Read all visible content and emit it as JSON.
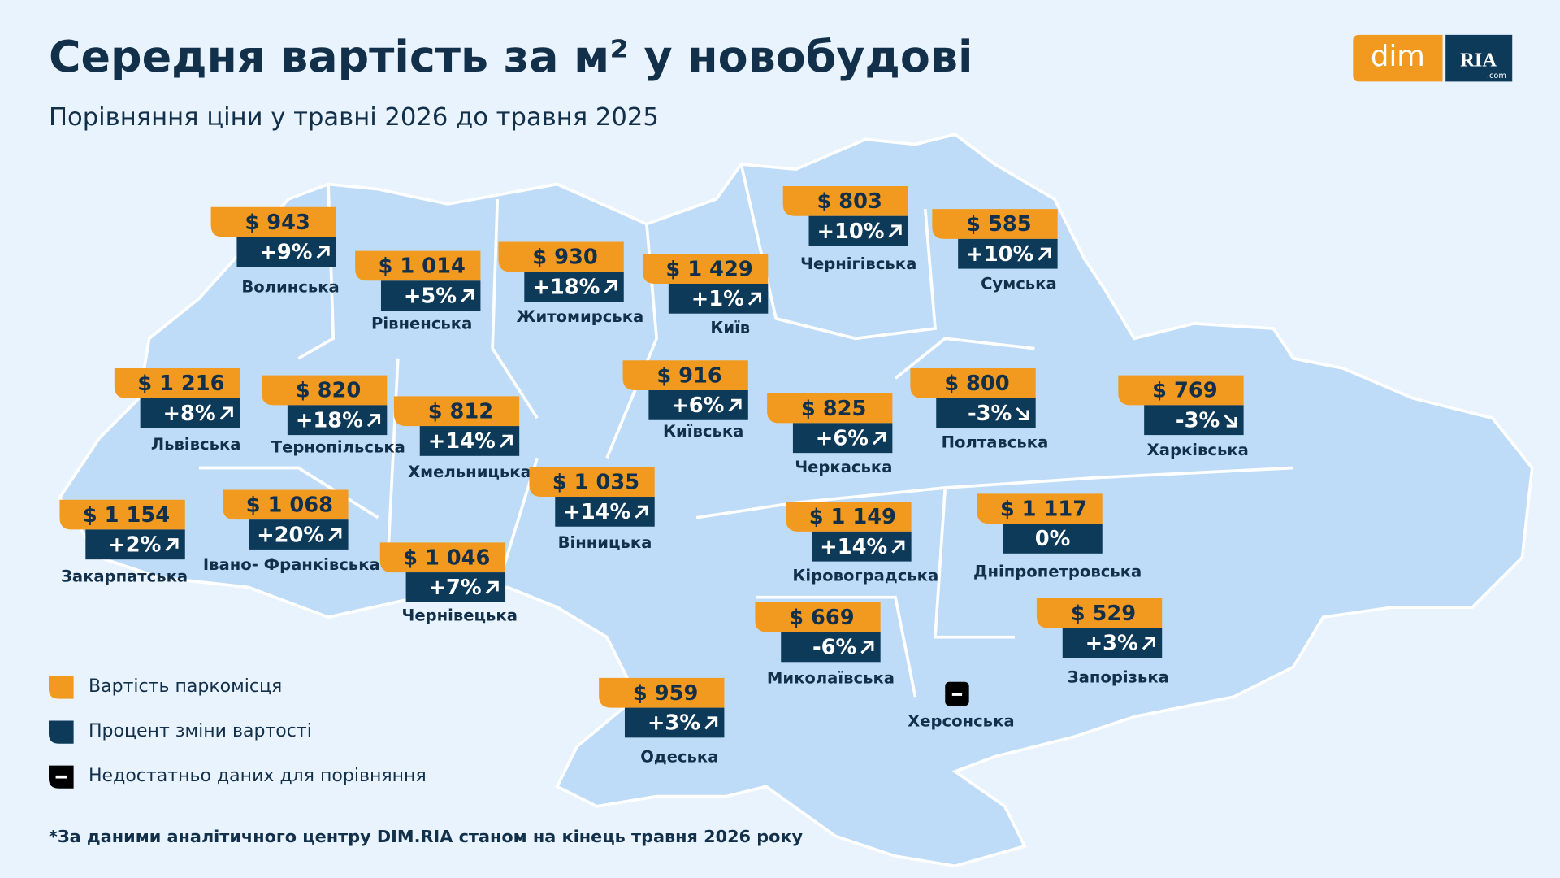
{
  "header": {
    "title": "Середня вартість за м² у новобудові",
    "subtitle": "Порівняння ціни у травні 2026 до травня 2025"
  },
  "logo": {
    "left": "dim",
    "right": "RIA",
    "right_sub": ".com"
  },
  "regions": [
    {
      "name": "Волинська",
      "price": "$ 943",
      "change": "+9%"
    },
    {
      "name": "Рівненська",
      "price": "$ 1 014",
      "change": "+5%"
    },
    {
      "name": "Житомирська",
      "price": "$ 930",
      "change": "+18%"
    },
    {
      "name": "Київ",
      "price": "$ 1 429",
      "change": "+1%"
    },
    {
      "name": "Чернігівська",
      "price": "$ 803",
      "change": "+10%"
    },
    {
      "name": "Сумська",
      "price": "$ 585",
      "change": "+10%"
    },
    {
      "name": "Львівська",
      "price": "$ 1 216",
      "change": "+8%"
    },
    {
      "name": "Тернопільська",
      "price": "$ 820",
      "change": "+18%"
    },
    {
      "name": "Хмельницька",
      "price": "$ 812",
      "change": "+14%"
    },
    {
      "name": "Київська",
      "price": "$ 916",
      "change": "+6%"
    },
    {
      "name": "Черкаська",
      "price": "$ 825",
      "change": "+6%"
    },
    {
      "name": "Полтавська",
      "price": "$ 800",
      "change": "-3%"
    },
    {
      "name": "Харківська",
      "price": "$ 769",
      "change": "-3%"
    },
    {
      "name": "Закарпатська",
      "price": "$ 1 154",
      "change": "+2%"
    },
    {
      "name": "Івано- Франківська",
      "price": "$ 1 068",
      "change": "+20%"
    },
    {
      "name": "Вінницька",
      "price": "$ 1 035",
      "change": "+14%"
    },
    {
      "name": "Кіровоградська",
      "price": "$ 1 149",
      "change": "+14%"
    },
    {
      "name": "Дніпропетровська",
      "price": "$ 1 117",
      "change": "0%"
    },
    {
      "name": "Чернівецька",
      "price": "$ 1 046",
      "change": "+7%"
    },
    {
      "name": "Миколаївська",
      "price": "$ 669",
      "change": "-6%"
    },
    {
      "name": "Запорізька",
      "price": "$ 529",
      "change": "+3%"
    },
    {
      "name": "Одеська",
      "price": "$ 959",
      "change": "+3%"
    },
    {
      "name": "Херсонська"
    }
  ],
  "legend": [
    "Вартість паркомісця",
    "Процент зміни вартості",
    "Недостатньо даних для порівняння"
  ],
  "footnote": "*За даними аналітичного центру DIM.RIA станом на кінець травня 2026 року"
}
